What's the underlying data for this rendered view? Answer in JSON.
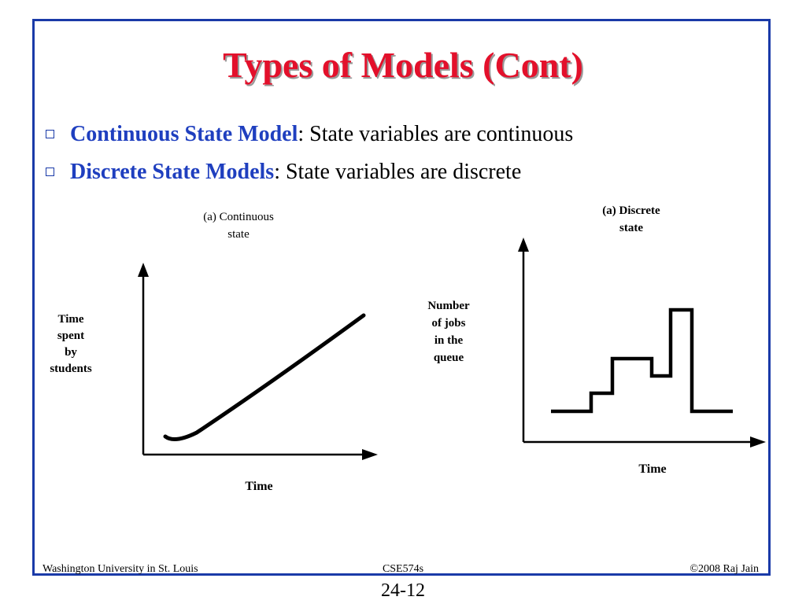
{
  "slide": {
    "title": "Types of Models (Cont)",
    "bullets": [
      {
        "term": "Continuous State Model",
        "rest": ": State variables are continuous"
      },
      {
        "term": "Discrete State Models",
        "rest": ": State variables are discrete"
      }
    ]
  },
  "figure_left": {
    "caption_line1": "(a) Continuous",
    "caption_line2": "state",
    "ylabel_lines": [
      "Time",
      "spent",
      "by",
      "students"
    ],
    "xlabel": "Time"
  },
  "figure_right": {
    "caption_line1": "(a) Discrete",
    "caption_line2": "state",
    "ylabel_lines": [
      "Number",
      "of jobs",
      "in the",
      "queue"
    ],
    "xlabel": "Time",
    "steps": [
      0,
      1,
      3,
      2,
      5,
      0
    ]
  },
  "footer": {
    "left": "Washington University in St. Louis",
    "center": "CSE574s",
    "right": "©2008 Raj Jain",
    "page_number": "24-12"
  },
  "colors": {
    "title": "#e3102b",
    "term": "#1f3fbf",
    "border": "#1a3aa8"
  }
}
